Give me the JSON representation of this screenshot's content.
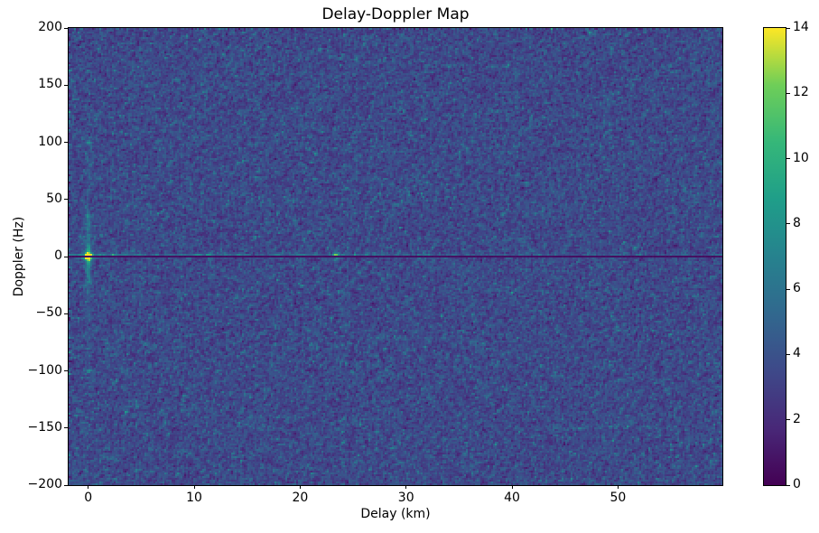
{
  "chart_data": {
    "type": "heatmap",
    "title": "Delay-Doppler Map",
    "xlabel": "Delay (km)",
    "ylabel": "Doppler (Hz)",
    "xlim": [
      -1.85,
      59.85
    ],
    "ylim": [
      -200,
      200
    ],
    "grid": false,
    "xticks": [
      {
        "value": 0,
        "label": "0"
      },
      {
        "value": 10,
        "label": "10"
      },
      {
        "value": 20,
        "label": "20"
      },
      {
        "value": 30,
        "label": "30"
      },
      {
        "value": 40,
        "label": "40"
      },
      {
        "value": 50,
        "label": "50"
      }
    ],
    "yticks": [
      {
        "value": 200,
        "label": "200"
      },
      {
        "value": 150,
        "label": "150"
      },
      {
        "value": 100,
        "label": "100"
      },
      {
        "value": 50,
        "label": "50"
      },
      {
        "value": 0,
        "label": "0"
      },
      {
        "value": -50,
        "label": "−50"
      },
      {
        "value": -100,
        "label": "−100"
      },
      {
        "value": -150,
        "label": "−150"
      },
      {
        "value": -200,
        "label": "−200"
      }
    ],
    "colorbar": {
      "min": 0,
      "max": 14,
      "ticks": [
        {
          "value": 0,
          "label": "0"
        },
        {
          "value": 2,
          "label": "2"
        },
        {
          "value": 4,
          "label": "4"
        },
        {
          "value": 6,
          "label": "6"
        },
        {
          "value": 8,
          "label": "8"
        },
        {
          "value": 10,
          "label": "10"
        },
        {
          "value": 12,
          "label": "12"
        },
        {
          "value": 14,
          "label": "14"
        }
      ],
      "colormap": "viridis"
    },
    "colormap_stops": [
      [
        0.0,
        "#440154"
      ],
      [
        0.125,
        "#482878"
      ],
      [
        0.25,
        "#3e4989"
      ],
      [
        0.375,
        "#31688e"
      ],
      [
        0.5,
        "#26828e"
      ],
      [
        0.625,
        "#1f9e89"
      ],
      [
        0.75,
        "#35b779"
      ],
      [
        0.875,
        "#6ece58"
      ],
      [
        1.0,
        "#fde725"
      ]
    ],
    "render": {
      "nx": 362,
      "ny": 253,
      "seed": 1337,
      "noise": {
        "base": 2.8,
        "gauss": 1.0,
        "exp": 0.8,
        "smooth": 0.45
      }
    },
    "features": [
      {
        "type": "peak",
        "name": "direct-path-peak",
        "delay": 0,
        "doppler": 0,
        "amp": 13.5,
        "sigma_delay": 0.32,
        "sigma_doppler": 2.4
      },
      {
        "type": "peak",
        "name": "delay-spread-of-peak",
        "delay": 0,
        "doppler": 0,
        "amp": 3.2,
        "sigma_delay": 1.1,
        "sigma_doppler": 1.7
      },
      {
        "type": "vstreak",
        "name": "zero-delay-doppler-streak",
        "delay": 0,
        "sigma_delay": 0.27,
        "components": [
          [
            6.0,
            7
          ],
          [
            2.6,
            26
          ],
          [
            0.7,
            85
          ]
        ]
      },
      {
        "type": "peak",
        "name": "doppler-sidelobe-upper",
        "delay": 0,
        "doppler": 100,
        "amp": 4.6,
        "sigma_delay": 0.3,
        "sigma_doppler": 1.7
      },
      {
        "type": "peak",
        "name": "doppler-sidelobe-lower",
        "delay": 0,
        "doppler": -100,
        "amp": 4.0,
        "sigma_delay": 0.3,
        "sigma_doppler": 1.7
      },
      {
        "type": "peak",
        "name": "streak-blob-upper",
        "delay": 0,
        "doppler": 36,
        "amp": 2.1,
        "sigma_delay": 0.28,
        "sigma_doppler": 1.8
      },
      {
        "type": "peak",
        "name": "streak-blob-lower",
        "delay": 0,
        "doppler": -22,
        "amp": 2.1,
        "sigma_delay": 0.28,
        "sigma_doppler": 1.8
      },
      {
        "type": "ridge",
        "name": "zero-doppler-ridge",
        "doppler": 1.7,
        "amp": 2.0,
        "floor": 0.45,
        "decay_km": 22,
        "sigma_doppler": 0.9
      },
      {
        "type": "spots",
        "name": "zero-doppler-echo-spots",
        "doppler": 1.7,
        "sigma_delay": 0.35,
        "sigma_doppler": 1.5,
        "items": [
          [
            2.7,
            1.4
          ],
          [
            10.3,
            3.4
          ],
          [
            11.4,
            2.6
          ],
          [
            14.2,
            1.3
          ],
          [
            17.9,
            1.7
          ],
          [
            20.6,
            1.4
          ],
          [
            23.4,
            4.6
          ],
          [
            26.2,
            1.1
          ],
          [
            29.9,
            2.5
          ],
          [
            32.1,
            1.1
          ],
          [
            34.5,
            1.9
          ],
          [
            38.0,
            1.0
          ],
          [
            42.5,
            0.9
          ],
          [
            47.0,
            1.2
          ],
          [
            52.0,
            0.9
          ],
          [
            56.0,
            0.9
          ],
          [
            59.6,
            2.4
          ]
        ]
      },
      {
        "type": "peak",
        "name": "echo-23km-doppler-spread",
        "delay": 23.4,
        "doppler": 0,
        "amp": 3.0,
        "sigma_delay": 0.3,
        "sigma_doppler": 4.5
      },
      {
        "type": "dark_row",
        "name": "zero-doppler-notch-line",
        "doppler": 0.1,
        "value": 0.55
      }
    ]
  }
}
